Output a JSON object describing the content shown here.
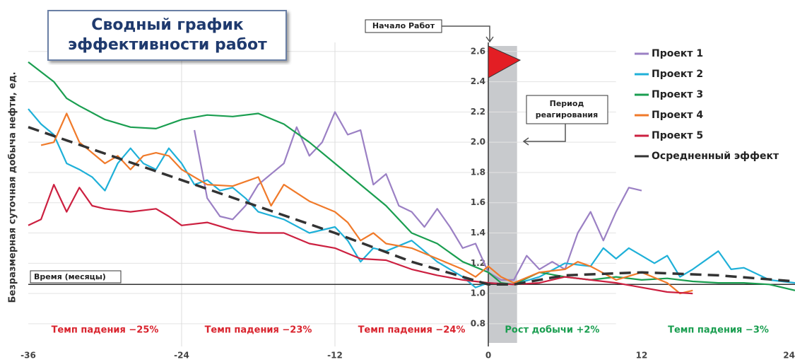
{
  "chart_data": {
    "type": "line",
    "title_lines": [
      "Сводный график",
      "эффективности работ"
    ],
    "ylabel": "Безразмерная суточная добыча нефти, ед.",
    "xlabel": "Время (месяцы)",
    "start_label": "Начало Работ",
    "period_label_lines": [
      "Период",
      "реагирования"
    ],
    "xlim": [
      -36,
      24
    ],
    "ylim": [
      0.65,
      2.8
    ],
    "xticks": [
      -36,
      -24,
      -12,
      0,
      12,
      24
    ],
    "yticks": [
      0.8,
      {
        "value": 1.0,
        "label": "1.0"
      },
      1.2,
      1.4,
      1.6,
      1.8,
      {
        "value": 2.0,
        "label": "2.0"
      },
      2.2,
      2.4,
      2.6
    ],
    "vgrid": [
      -24,
      -12
    ],
    "time_axis_y": 1.06,
    "shaded_xrange": [
      0,
      2.25
    ],
    "series": [
      {
        "name": "Проект 1",
        "color": "#9b80c4",
        "x": [
          -23,
          -22,
          -21,
          -20,
          -19,
          -18,
          -16,
          -15,
          -14,
          -13,
          -12,
          -11,
          -10,
          -9,
          -8,
          -7,
          -6,
          -5,
          -4,
          -3,
          -2,
          -1,
          0,
          1,
          2,
          3,
          4,
          5,
          6,
          7,
          8,
          9,
          10,
          11,
          12
        ],
        "values": [
          2.08,
          1.63,
          1.51,
          1.49,
          1.58,
          1.72,
          1.86,
          2.1,
          1.91,
          2.0,
          2.2,
          2.05,
          2.08,
          1.72,
          1.79,
          1.58,
          1.54,
          1.44,
          1.56,
          1.44,
          1.3,
          1.33,
          1.14,
          1.09,
          1.09,
          1.25,
          1.16,
          1.21,
          1.16,
          1.4,
          1.54,
          1.35,
          1.54,
          1.7,
          1.68
        ]
      },
      {
        "name": "Проект 2",
        "color": "#1fb0d8",
        "x": [
          -36,
          -35,
          -34,
          -33,
          -32,
          -31,
          -30,
          -29,
          -28,
          -27,
          -26,
          -25,
          -24,
          -23,
          -22,
          -21,
          -20,
          -19,
          -18,
          -16,
          -14,
          -12,
          -11,
          -10,
          -9,
          -8,
          -6,
          -4,
          -2,
          -1,
          0,
          2,
          4,
          6,
          8,
          9,
          10,
          11,
          12,
          13,
          14,
          15,
          16,
          18,
          19,
          20,
          22,
          24
        ],
        "values": [
          2.22,
          2.12,
          2.05,
          1.86,
          1.82,
          1.77,
          1.68,
          1.86,
          1.96,
          1.86,
          1.82,
          1.96,
          1.86,
          1.72,
          1.75,
          1.68,
          1.7,
          1.63,
          1.54,
          1.49,
          1.4,
          1.44,
          1.35,
          1.21,
          1.3,
          1.28,
          1.35,
          1.21,
          1.11,
          1.04,
          1.07,
          1.06,
          1.11,
          1.2,
          1.18,
          1.3,
          1.23,
          1.3,
          1.25,
          1.2,
          1.25,
          1.11,
          1.16,
          1.28,
          1.16,
          1.17,
          1.09,
          1.07
        ]
      },
      {
        "name": "Проект 3",
        "color": "#1a9e50",
        "x": [
          -36,
          -34,
          -33,
          -32,
          -30,
          -28,
          -26,
          -24,
          -22,
          -20,
          -18,
          -16,
          -14,
          -12,
          -10,
          -8,
          -6,
          -4,
          -2,
          0,
          1,
          2,
          4,
          6,
          8,
          10,
          12,
          14,
          16,
          18,
          20,
          22,
          24
        ],
        "values": [
          2.53,
          2.4,
          2.29,
          2.24,
          2.15,
          2.1,
          2.09,
          2.15,
          2.18,
          2.17,
          2.19,
          2.12,
          2.0,
          1.86,
          1.72,
          1.58,
          1.4,
          1.33,
          1.21,
          1.14,
          1.07,
          1.06,
          1.14,
          1.11,
          1.09,
          1.11,
          1.09,
          1.1,
          1.08,
          1.07,
          1.07,
          1.06,
          1.02
        ]
      },
      {
        "name": "Проект 4",
        "color": "#f07a2a",
        "x": [
          -35,
          -34,
          -33,
          -32,
          -31,
          -30,
          -29,
          -28,
          -27,
          -26,
          -25,
          -24,
          -23,
          -22,
          -20,
          -18,
          -17,
          -16,
          -14,
          -12,
          -11,
          -10,
          -9,
          -8,
          -6,
          -4,
          -2,
          -1,
          0,
          1,
          2,
          4,
          6,
          7,
          8,
          10,
          12,
          14,
          15,
          16
        ],
        "values": [
          1.98,
          2.0,
          2.19,
          2.0,
          1.93,
          1.86,
          1.91,
          1.82,
          1.91,
          1.93,
          1.91,
          1.82,
          1.77,
          1.72,
          1.71,
          1.77,
          1.58,
          1.72,
          1.61,
          1.54,
          1.47,
          1.35,
          1.4,
          1.33,
          1.3,
          1.23,
          1.16,
          1.11,
          1.18,
          1.11,
          1.07,
          1.14,
          1.16,
          1.21,
          1.18,
          1.09,
          1.14,
          1.07,
          1.0,
          1.02
        ]
      },
      {
        "name": "Проект 5",
        "color": "#cc2040",
        "x": [
          -36,
          -35,
          -34,
          -33,
          -32,
          -31,
          -30,
          -28,
          -26,
          -25,
          -24,
          -22,
          -20,
          -18,
          -16,
          -14,
          -12,
          -10,
          -8,
          -6,
          -4,
          -2,
          0,
          2,
          4,
          6,
          8,
          10,
          12,
          14,
          16
        ],
        "values": [
          1.45,
          1.49,
          1.72,
          1.54,
          1.7,
          1.58,
          1.56,
          1.54,
          1.56,
          1.51,
          1.45,
          1.47,
          1.42,
          1.4,
          1.4,
          1.33,
          1.3,
          1.23,
          1.22,
          1.16,
          1.12,
          1.09,
          1.07,
          1.06,
          1.07,
          1.11,
          1.09,
          1.07,
          1.04,
          1.01,
          1.0
        ]
      },
      {
        "name": "Осредненный эффект",
        "color": "#333333",
        "dashed": true,
        "x": [
          -36,
          -24,
          -12,
          -6,
          0,
          2,
          6,
          12,
          18,
          24
        ],
        "values": [
          2.1,
          1.75,
          1.4,
          1.21,
          1.06,
          1.06,
          1.12,
          1.14,
          1.12,
          1.08
        ]
      }
    ],
    "annotations": [
      {
        "text": "Темп падения −25%",
        "x": -30,
        "color": "#d9232d"
      },
      {
        "text": "Темп падения −23%",
        "x": -18,
        "color": "#d9232d"
      },
      {
        "text": "Темп падения −24%",
        "x": -6,
        "color": "#d9232d"
      },
      {
        "text": "Рост добычи +2%",
        "x": 5,
        "color": "#1a9e50"
      },
      {
        "text": "Темп падения −3%",
        "x": 18,
        "color": "#1a9e50"
      }
    ]
  }
}
